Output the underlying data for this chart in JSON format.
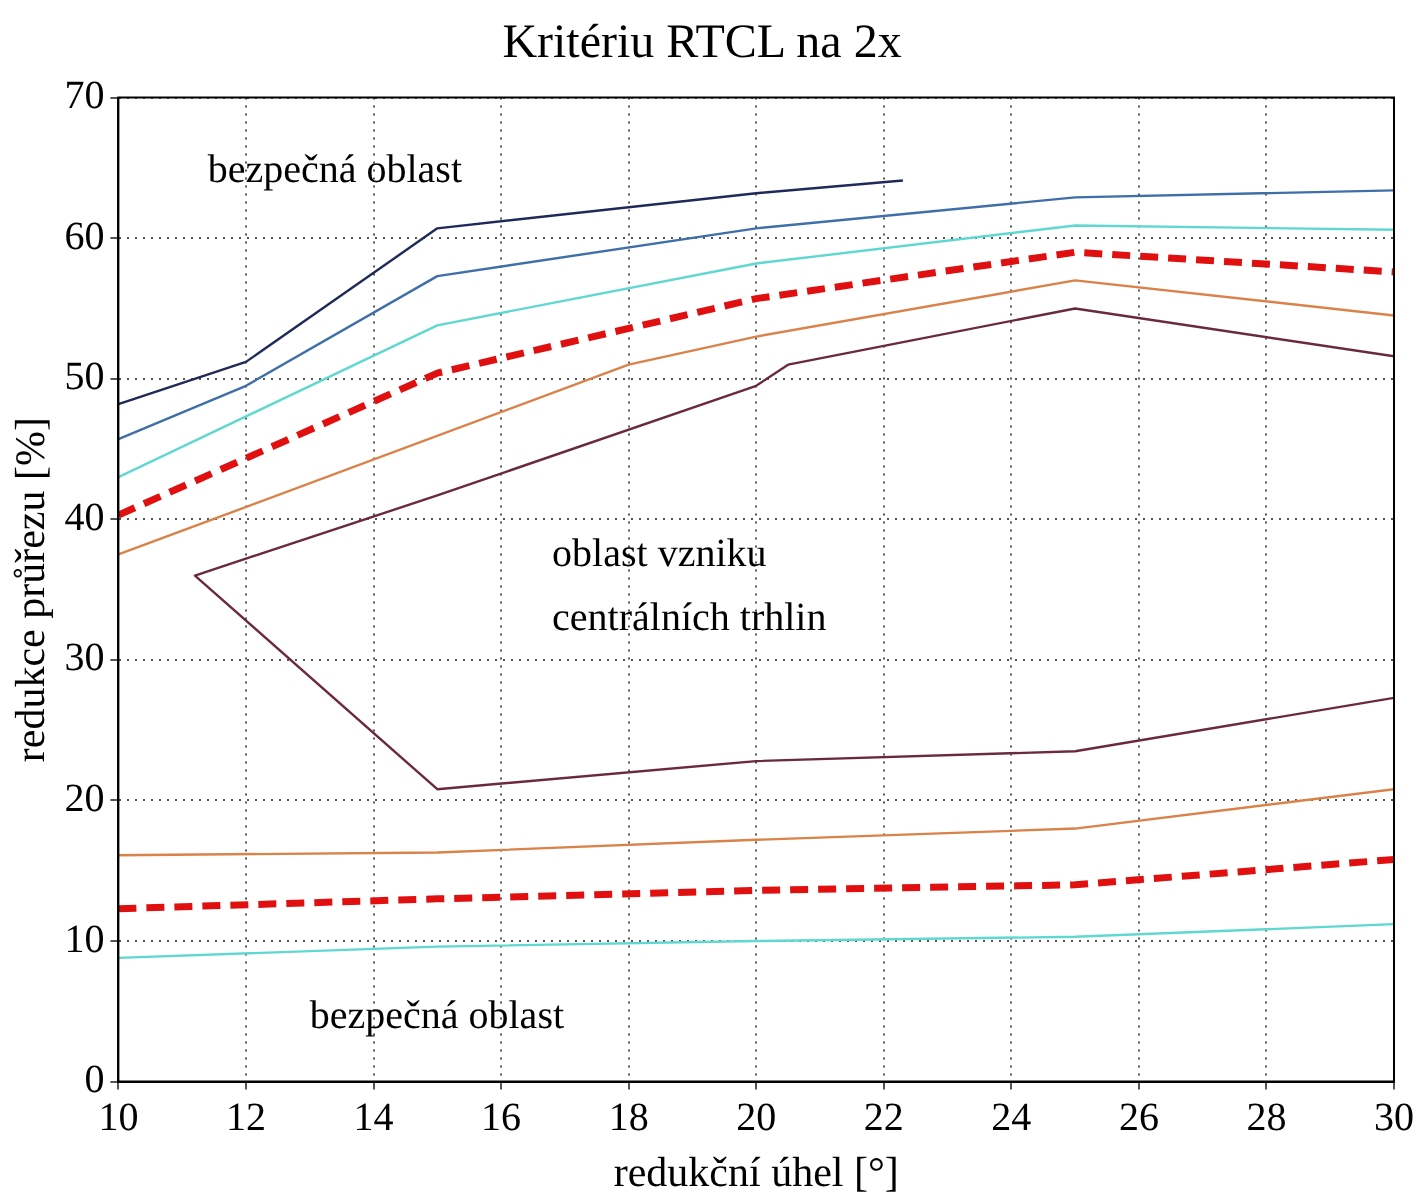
{
  "chart_data": {
    "type": "line",
    "title": "Kritériu RTCL na 2x",
    "xlabel": "redukční úhel [°]",
    "ylabel": "redukce průřezu [%]",
    "xlim": [
      10,
      30
    ],
    "xticks": [
      10,
      12,
      14,
      16,
      18,
      20,
      22,
      24,
      26,
      28,
      30
    ],
    "ylim": [
      0,
      70
    ],
    "yticks": [
      0,
      10,
      20,
      30,
      40,
      50,
      60,
      70
    ],
    "grid": true,
    "legend": false,
    "marker": "none",
    "annotations": [
      "bezpečná oblast",
      "oblast vzniku centrálních trhlin",
      "bezpečná oblast"
    ],
    "series": [
      {
        "color": "#1f2a5a",
        "x": [
          10,
          12,
          15,
          20,
          22.3
        ],
        "values": [
          48.2,
          51.2,
          60.7,
          63.2,
          64.1
        ]
      },
      {
        "color": "#3f6fa8",
        "x": [
          10,
          12,
          15,
          20,
          25,
          30
        ],
        "values": [
          45.7,
          49.5,
          57.3,
          60.7,
          62.9,
          63.4
        ]
      },
      {
        "color": "#5fd8d0",
        "x": [
          10,
          15,
          20,
          25,
          30
        ],
        "values": [
          43,
          53.8,
          58.2,
          60.9,
          60.6
        ]
      },
      {
        "color": "#e01010",
        "line_style": "dashed",
        "x": [
          10,
          15,
          20,
          25,
          30
        ],
        "values": [
          40.3,
          50.4,
          55.7,
          59,
          57.6
        ]
      },
      {
        "color": "#d9824a",
        "x": [
          10,
          18,
          20,
          25,
          30
        ],
        "values": [
          37.5,
          51,
          53,
          57,
          54.5
        ]
      },
      {
        "color": "#6b2a3a",
        "x": [
          30,
          25,
          20.5,
          20,
          15,
          11.2,
          15,
          20,
          25,
          30
        ],
        "values": [
          51.6,
          55,
          51,
          49.5,
          41.7,
          36,
          20.8,
          22.8,
          23.5,
          27.3
        ]
      },
      {
        "color": "#d9824a",
        "x": [
          10,
          15,
          20,
          25,
          30
        ],
        "values": [
          16.1,
          16.3,
          17.2,
          18,
          20.8
        ]
      },
      {
        "color": "#e01010",
        "line_style": "dashed",
        "x": [
          10,
          15,
          20,
          25,
          30
        ],
        "values": [
          12.3,
          13,
          13.6,
          14,
          15.8
        ]
      },
      {
        "color": "#5fd8d0",
        "x": [
          10,
          15,
          20,
          25,
          30
        ],
        "values": [
          8.8,
          9.6,
          10,
          10.3,
          11.2
        ]
      }
    ]
  }
}
